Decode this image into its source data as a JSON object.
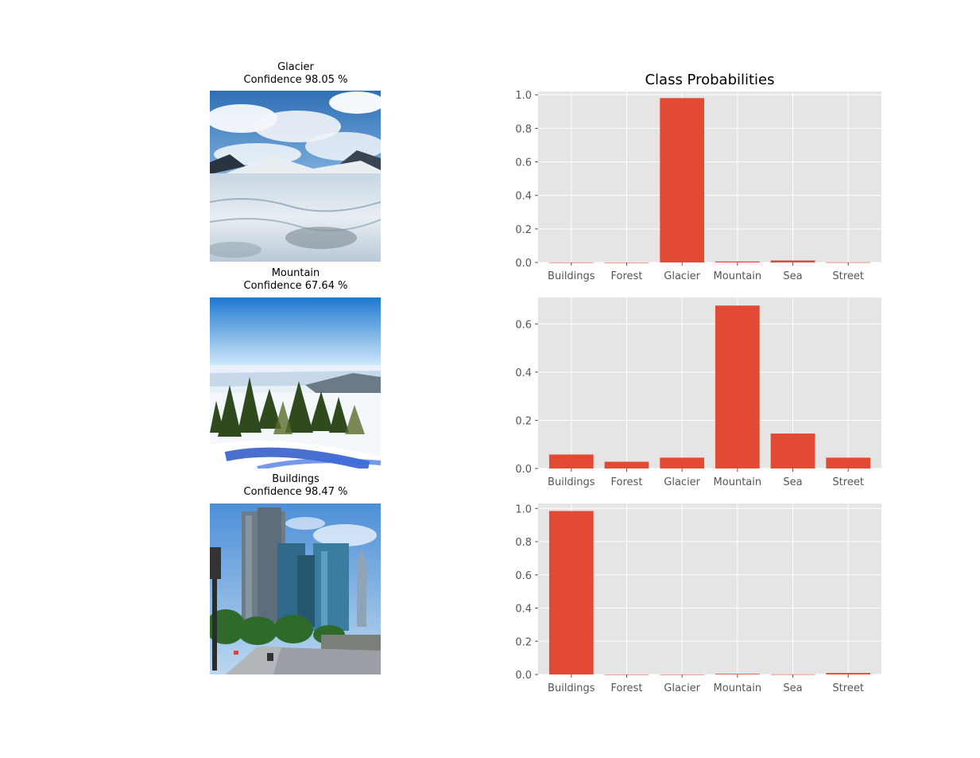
{
  "predictions": [
    {
      "label": "Glacier",
      "confidence": "Confidence 98.05 %",
      "scene": "glacier-photo"
    },
    {
      "label": "Mountain",
      "confidence": "Confidence 67.64 %",
      "scene": "mountain-photo"
    },
    {
      "label": "Buildings",
      "confidence": "Confidence 98.47 %",
      "scene": "buildings-photo"
    }
  ],
  "chart_data": [
    {
      "type": "bar",
      "title": "Class Probabilities",
      "categories": [
        "Buildings",
        "Forest",
        "Glacier",
        "Mountain",
        "Sea",
        "Street"
      ],
      "values": [
        0.0005,
        0.0002,
        0.9805,
        0.006,
        0.012,
        0.001
      ],
      "ylim": [
        0,
        1.02
      ],
      "yticks": [
        0.0,
        0.2,
        0.4,
        0.6,
        0.8,
        1.0
      ],
      "grid": true,
      "bar_color": "#E24A33",
      "background": "#E5E5E5"
    },
    {
      "type": "bar",
      "title": "",
      "categories": [
        "Buildings",
        "Forest",
        "Glacier",
        "Mountain",
        "Sea",
        "Street"
      ],
      "values": [
        0.058,
        0.028,
        0.045,
        0.6764,
        0.145,
        0.045
      ],
      "ylim": [
        0,
        0.71
      ],
      "yticks": [
        0.0,
        0.2,
        0.4,
        0.6
      ],
      "grid": true,
      "bar_color": "#E24A33",
      "background": "#E5E5E5"
    },
    {
      "type": "bar",
      "title": "",
      "categories": [
        "Buildings",
        "Forest",
        "Glacier",
        "Mountain",
        "Sea",
        "Street"
      ],
      "values": [
        0.9847,
        0.0005,
        0.0005,
        0.004,
        0.001,
        0.009
      ],
      "ylim": [
        0,
        1.03
      ],
      "yticks": [
        0.0,
        0.2,
        0.4,
        0.6,
        0.8,
        1.0
      ],
      "grid": true,
      "bar_color": "#E24A33",
      "background": "#E5E5E5"
    }
  ]
}
